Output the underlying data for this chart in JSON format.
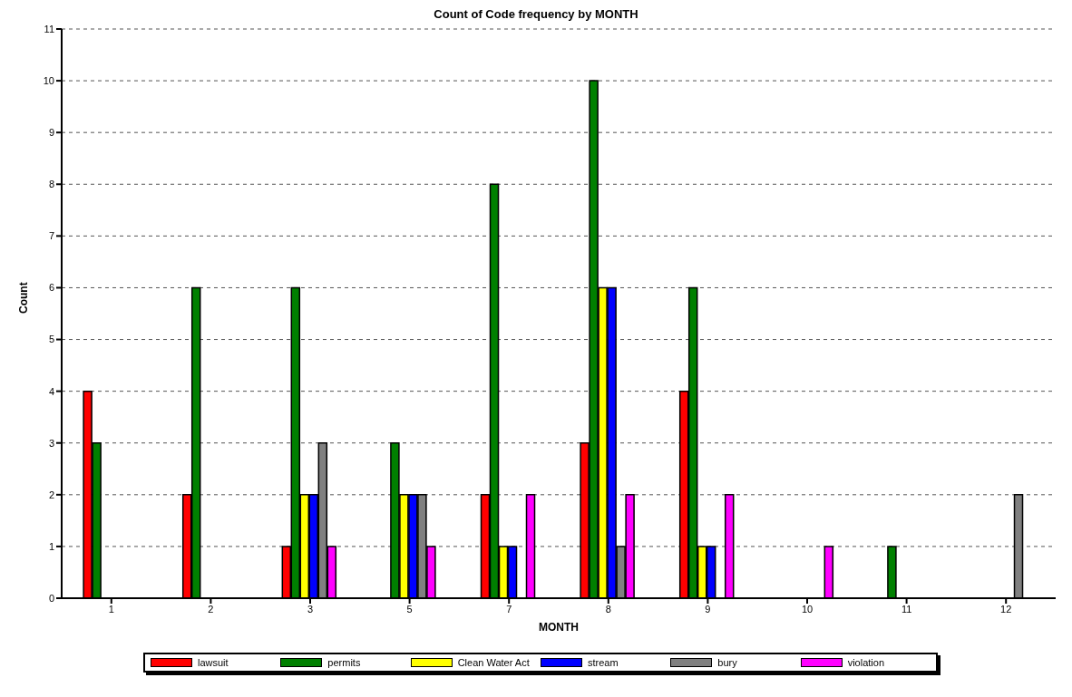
{
  "chart_data": {
    "type": "bar",
    "title": "Count of Code frequency by MONTH",
    "xlabel": "MONTH",
    "ylabel": "Count",
    "categories": [
      "1",
      "2",
      "3",
      "5",
      "7",
      "8",
      "9",
      "10",
      "11",
      "12"
    ],
    "series": [
      {
        "name": "lawsuit",
        "color": "#ff0000",
        "values": [
          4,
          2,
          1,
          0,
          2,
          3,
          4,
          0,
          0,
          0
        ]
      },
      {
        "name": "permits",
        "color": "#008000",
        "values": [
          3,
          6,
          6,
          3,
          8,
          10,
          6,
          0,
          1,
          0
        ]
      },
      {
        "name": "Clean Water Act",
        "color": "#ffff00",
        "values": [
          0,
          0,
          2,
          2,
          1,
          6,
          1,
          0,
          0,
          0
        ]
      },
      {
        "name": "stream",
        "color": "#0000ff",
        "values": [
          0,
          0,
          2,
          2,
          1,
          6,
          1,
          0,
          0,
          0
        ]
      },
      {
        "name": "bury",
        "color": "#808080",
        "values": [
          0,
          0,
          3,
          2,
          0,
          1,
          0,
          0,
          0,
          2
        ]
      },
      {
        "name": "violation",
        "color": "#ff00ff",
        "values": [
          0,
          0,
          1,
          1,
          2,
          2,
          2,
          1,
          0,
          0
        ]
      }
    ],
    "ylim": [
      0,
      11
    ],
    "yticks": [
      0,
      1,
      2,
      3,
      4,
      5,
      6,
      7,
      8,
      9,
      10,
      11
    ],
    "grid": "y",
    "legend": "bottom"
  }
}
